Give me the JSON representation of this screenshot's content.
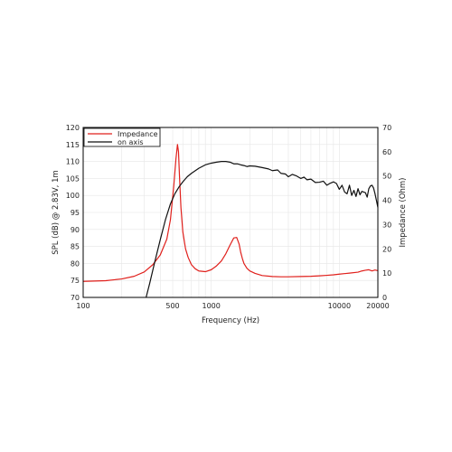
{
  "chart_data": {
    "type": "line",
    "xlabel": "Frequency (Hz)",
    "ylabel_left": "SPL (dB) @ 2.83V, 1m",
    "ylabel_right": "Impedance (Ohm)",
    "x_scale": "log",
    "xlim": [
      100,
      20000
    ],
    "ylim_left": [
      70,
      120
    ],
    "ylim_right": [
      0,
      70
    ],
    "grid": true,
    "legend_position": "top-left",
    "x_ticks": [
      100,
      500,
      1000,
      10000,
      20000
    ],
    "x_tick_labels": [
      "100",
      "500",
      "1000",
      "10000",
      "20000"
    ],
    "y_left_ticks": [
      70,
      75,
      80,
      85,
      90,
      95,
      100,
      105,
      110,
      115,
      120
    ],
    "y_left_tick_labels": [
      "70",
      "75",
      "80",
      "85",
      "90",
      "95",
      "100",
      "105",
      "110",
      "115",
      "120"
    ],
    "y_right_ticks": [
      0,
      10,
      20,
      30,
      40,
      50,
      60,
      70
    ],
    "y_right_tick_labels": [
      "0",
      "10",
      "20",
      "30",
      "40",
      "50",
      "60",
      "70"
    ],
    "series": [
      {
        "name": "Impedance",
        "axis": "right",
        "color": "#e0201c",
        "x": [
          100,
          150,
          200,
          250,
          300,
          350,
          400,
          450,
          480,
          510,
          530,
          545,
          555,
          565,
          580,
          600,
          630,
          660,
          700,
          750,
          800,
          900,
          1000,
          1100,
          1200,
          1300,
          1400,
          1500,
          1580,
          1650,
          1700,
          1750,
          1800,
          1900,
          2000,
          2200,
          2500,
          3000,
          3500,
          4000,
          5000,
          6000,
          7000,
          8000,
          9000,
          10000,
          12000,
          14000,
          15000,
          16000,
          17000,
          18000,
          19000,
          20000
        ],
        "y": [
          6.6,
          6.9,
          7.6,
          8.7,
          10.5,
          13.5,
          17.5,
          24.0,
          32.0,
          46.0,
          57.0,
          63.0,
          60.0,
          50.0,
          37.0,
          27.0,
          20.0,
          16.5,
          13.5,
          11.8,
          10.9,
          10.6,
          11.4,
          13.0,
          15.0,
          18.0,
          21.5,
          24.5,
          24.7,
          22.0,
          18.5,
          16.0,
          14.0,
          12.0,
          10.9,
          9.9,
          9.0,
          8.6,
          8.5,
          8.5,
          8.6,
          8.7,
          8.9,
          9.1,
          9.3,
          9.6,
          10.0,
          10.4,
          10.9,
          11.2,
          11.4,
          10.9,
          11.3,
          11.0
        ]
      },
      {
        "name": "on axis",
        "axis": "left",
        "color": "#111111",
        "x": [
          310,
          330,
          360,
          400,
          440,
          480,
          520,
          560,
          600,
          650,
          700,
          800,
          900,
          1000,
          1100,
          1200,
          1300,
          1400,
          1500,
          1600,
          1700,
          1800,
          1900,
          2000,
          2200,
          2500,
          2800,
          3000,
          3300,
          3500,
          3800,
          4000,
          4300,
          4600,
          5000,
          5300,
          5600,
          6000,
          6500,
          7000,
          7500,
          8000,
          8500,
          9000,
          9500,
          10000,
          10500,
          11000,
          11500,
          12000,
          12500,
          13000,
          13500,
          14000,
          14500,
          15000,
          15500,
          16000,
          16500,
          17000,
          17500,
          18000,
          18500,
          19000,
          19500,
          20000
        ],
        "y": [
          70.0,
          74.0,
          80.0,
          87.0,
          93.0,
          97.5,
          100.5,
          102.5,
          104.0,
          105.5,
          106.5,
          108.0,
          109.0,
          109.5,
          109.8,
          110.0,
          110.0,
          109.8,
          109.3,
          109.3,
          109.0,
          108.8,
          108.5,
          108.7,
          108.6,
          108.2,
          107.8,
          107.3,
          107.5,
          106.5,
          106.3,
          105.5,
          106.2,
          105.8,
          105.0,
          105.4,
          104.6,
          104.8,
          103.8,
          103.9,
          104.2,
          103.0,
          103.6,
          104.0,
          103.5,
          101.8,
          103.0,
          101.0,
          100.5,
          103.0,
          100.0,
          101.5,
          99.7,
          102.0,
          100.2,
          101.2,
          101.0,
          100.8,
          99.5,
          102.0,
          102.8,
          103.0,
          102.2,
          100.5,
          98.5,
          96.5
        ]
      }
    ]
  }
}
